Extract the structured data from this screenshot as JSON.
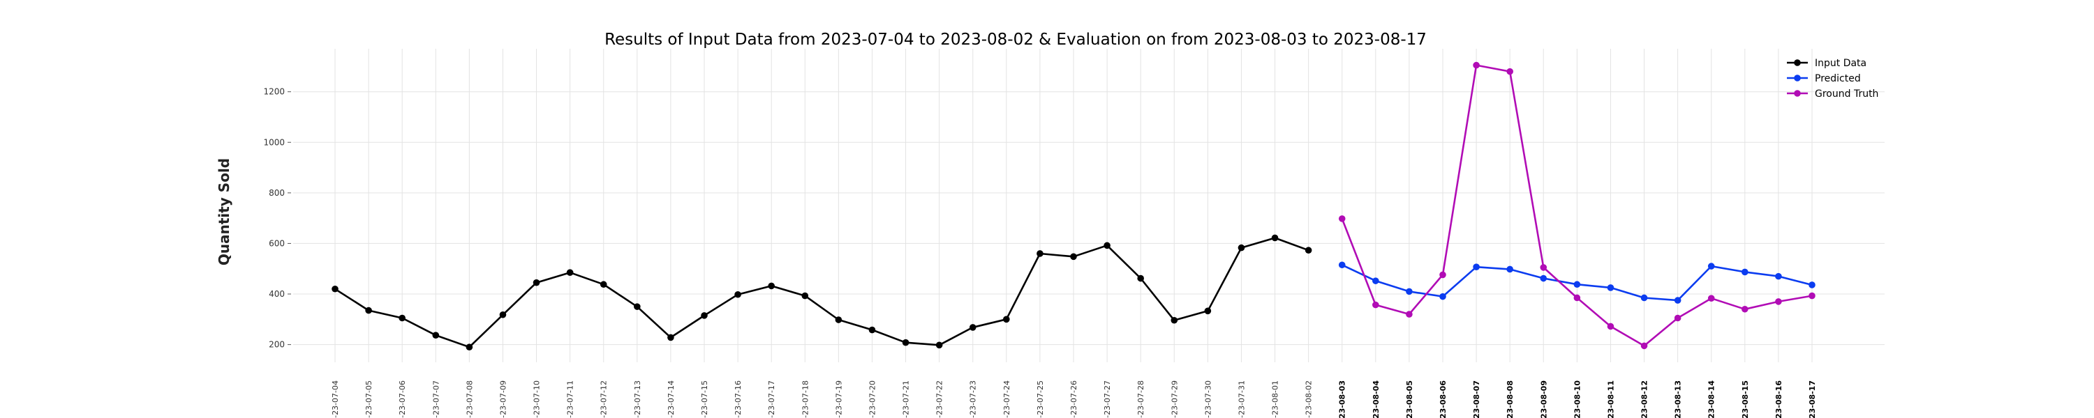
{
  "chart_data": {
    "type": "line",
    "title": "Results of Input Data from 2023-07-04 to 2023-08-02 & Evaluation on from 2023-08-03 to 2023-08-17",
    "ylabel": "Quantity Sold",
    "xlabel": "",
    "ylim": [
      130,
      1370
    ],
    "yticks": [
      200,
      400,
      600,
      800,
      1000,
      1200
    ],
    "grid": true,
    "legend_position": "top-right",
    "x": [
      "2023-07-04",
      "2023-07-05",
      "2023-07-06",
      "2023-07-07",
      "2023-07-08",
      "2023-07-09",
      "2023-07-10",
      "2023-07-11",
      "2023-07-12",
      "2023-07-13",
      "2023-07-14",
      "2023-07-15",
      "2023-07-16",
      "2023-07-17",
      "2023-07-18",
      "2023-07-19",
      "2023-07-20",
      "2023-07-21",
      "2023-07-22",
      "2023-07-23",
      "2023-07-24",
      "2023-07-25",
      "2023-07-26",
      "2023-07-27",
      "2023-07-28",
      "2023-07-29",
      "2023-07-30",
      "2023-07-31",
      "2023-08-01",
      "2023-08-02",
      "2023-08-03",
      "2023-08-04",
      "2023-08-05",
      "2023-08-06",
      "2023-08-07",
      "2023-08-08",
      "2023-08-09",
      "2023-08-10",
      "2023-08-11",
      "2023-08-12",
      "2023-08-13",
      "2023-08-14",
      "2023-08-15",
      "2023-08-16",
      "2023-08-17"
    ],
    "x_tick_labels": [
      "-23-07-04",
      "-23-07-05",
      "-23-07-06",
      "-23-07-07",
      "-23-07-08",
      "-23-07-09",
      "-23-07-10",
      "-23-07-11",
      "-23-07-12",
      "-23-07-13",
      "-23-07-14",
      "-23-07-15",
      "-23-07-16",
      "-23-07-17",
      "-23-07-18",
      "-23-07-19",
      "-23-07-20",
      "-23-07-21",
      "-23-07-22",
      "-23-07-23",
      "-23-07-24",
      "-23-07-25",
      "-23-07-26",
      "-23-07-27",
      "-23-07-28",
      "-23-07-29",
      "-23-07-30",
      "-23-07-31",
      "-23-08-01",
      "-23-08-02",
      "-23-08-03",
      "-23-08-04",
      "-23-08-05",
      "-23-08-06",
      "-23-08-07",
      "-23-08-08",
      "-23-08-09",
      "-23-08-10",
      "-23-08-11",
      "-23-08-12",
      "-23-08-13",
      "-23-08-14",
      "-23-08-15",
      "-23-08-16",
      "-23-08-17"
    ],
    "bold_tick_from": "2023-08-03",
    "series": [
      {
        "name": "Input Data",
        "color": "#000000",
        "points": [
          [
            "2023-07-04",
            420
          ],
          [
            "2023-07-05",
            335
          ],
          [
            "2023-07-06",
            305
          ],
          [
            "2023-07-07",
            237
          ],
          [
            "2023-07-08",
            190
          ],
          [
            "2023-07-09",
            318
          ],
          [
            "2023-07-10",
            445
          ],
          [
            "2023-07-11",
            485
          ],
          [
            "2023-07-12",
            438
          ],
          [
            "2023-07-13",
            350
          ],
          [
            "2023-07-14",
            228
          ],
          [
            "2023-07-15",
            315
          ],
          [
            "2023-07-16",
            398
          ],
          [
            "2023-07-17",
            432
          ],
          [
            "2023-07-18",
            393
          ],
          [
            "2023-07-19",
            298
          ],
          [
            "2023-07-20",
            258
          ],
          [
            "2023-07-21",
            208
          ],
          [
            "2023-07-22",
            198
          ],
          [
            "2023-07-23",
            268
          ],
          [
            "2023-07-24",
            300
          ],
          [
            "2023-07-25",
            560
          ],
          [
            "2023-07-26",
            548
          ],
          [
            "2023-07-27",
            592
          ],
          [
            "2023-07-28",
            462
          ],
          [
            "2023-07-29",
            296
          ],
          [
            "2023-07-30",
            333
          ],
          [
            "2023-07-31",
            583
          ],
          [
            "2023-08-01",
            622
          ],
          [
            "2023-08-02",
            573
          ]
        ]
      },
      {
        "name": "Predicted",
        "color": "#0b3cf0",
        "points": [
          [
            "2023-08-03",
            515
          ],
          [
            "2023-08-04",
            452
          ],
          [
            "2023-08-05",
            410
          ],
          [
            "2023-08-06",
            390
          ],
          [
            "2023-08-07",
            507
          ],
          [
            "2023-08-08",
            498
          ],
          [
            "2023-08-09",
            462
          ],
          [
            "2023-08-10",
            438
          ],
          [
            "2023-08-11",
            425
          ],
          [
            "2023-08-12",
            385
          ],
          [
            "2023-08-13",
            375
          ],
          [
            "2023-08-14",
            510
          ],
          [
            "2023-08-15",
            487
          ],
          [
            "2023-08-16",
            470
          ],
          [
            "2023-08-17",
            436
          ]
        ]
      },
      {
        "name": "Ground Truth",
        "color": "#b10cb5",
        "points": [
          [
            "2023-08-03",
            698
          ],
          [
            "2023-08-04",
            357
          ],
          [
            "2023-08-05",
            320
          ],
          [
            "2023-08-06",
            476
          ],
          [
            "2023-08-07",
            1305
          ],
          [
            "2023-08-08",
            1280
          ],
          [
            "2023-08-09",
            505
          ],
          [
            "2023-08-10",
            385
          ],
          [
            "2023-08-11",
            272
          ],
          [
            "2023-08-12",
            195
          ],
          [
            "2023-08-13",
            305
          ],
          [
            "2023-08-14",
            383
          ],
          [
            "2023-08-15",
            340
          ],
          [
            "2023-08-16",
            370
          ],
          [
            "2023-08-17",
            393
          ]
        ]
      }
    ]
  }
}
